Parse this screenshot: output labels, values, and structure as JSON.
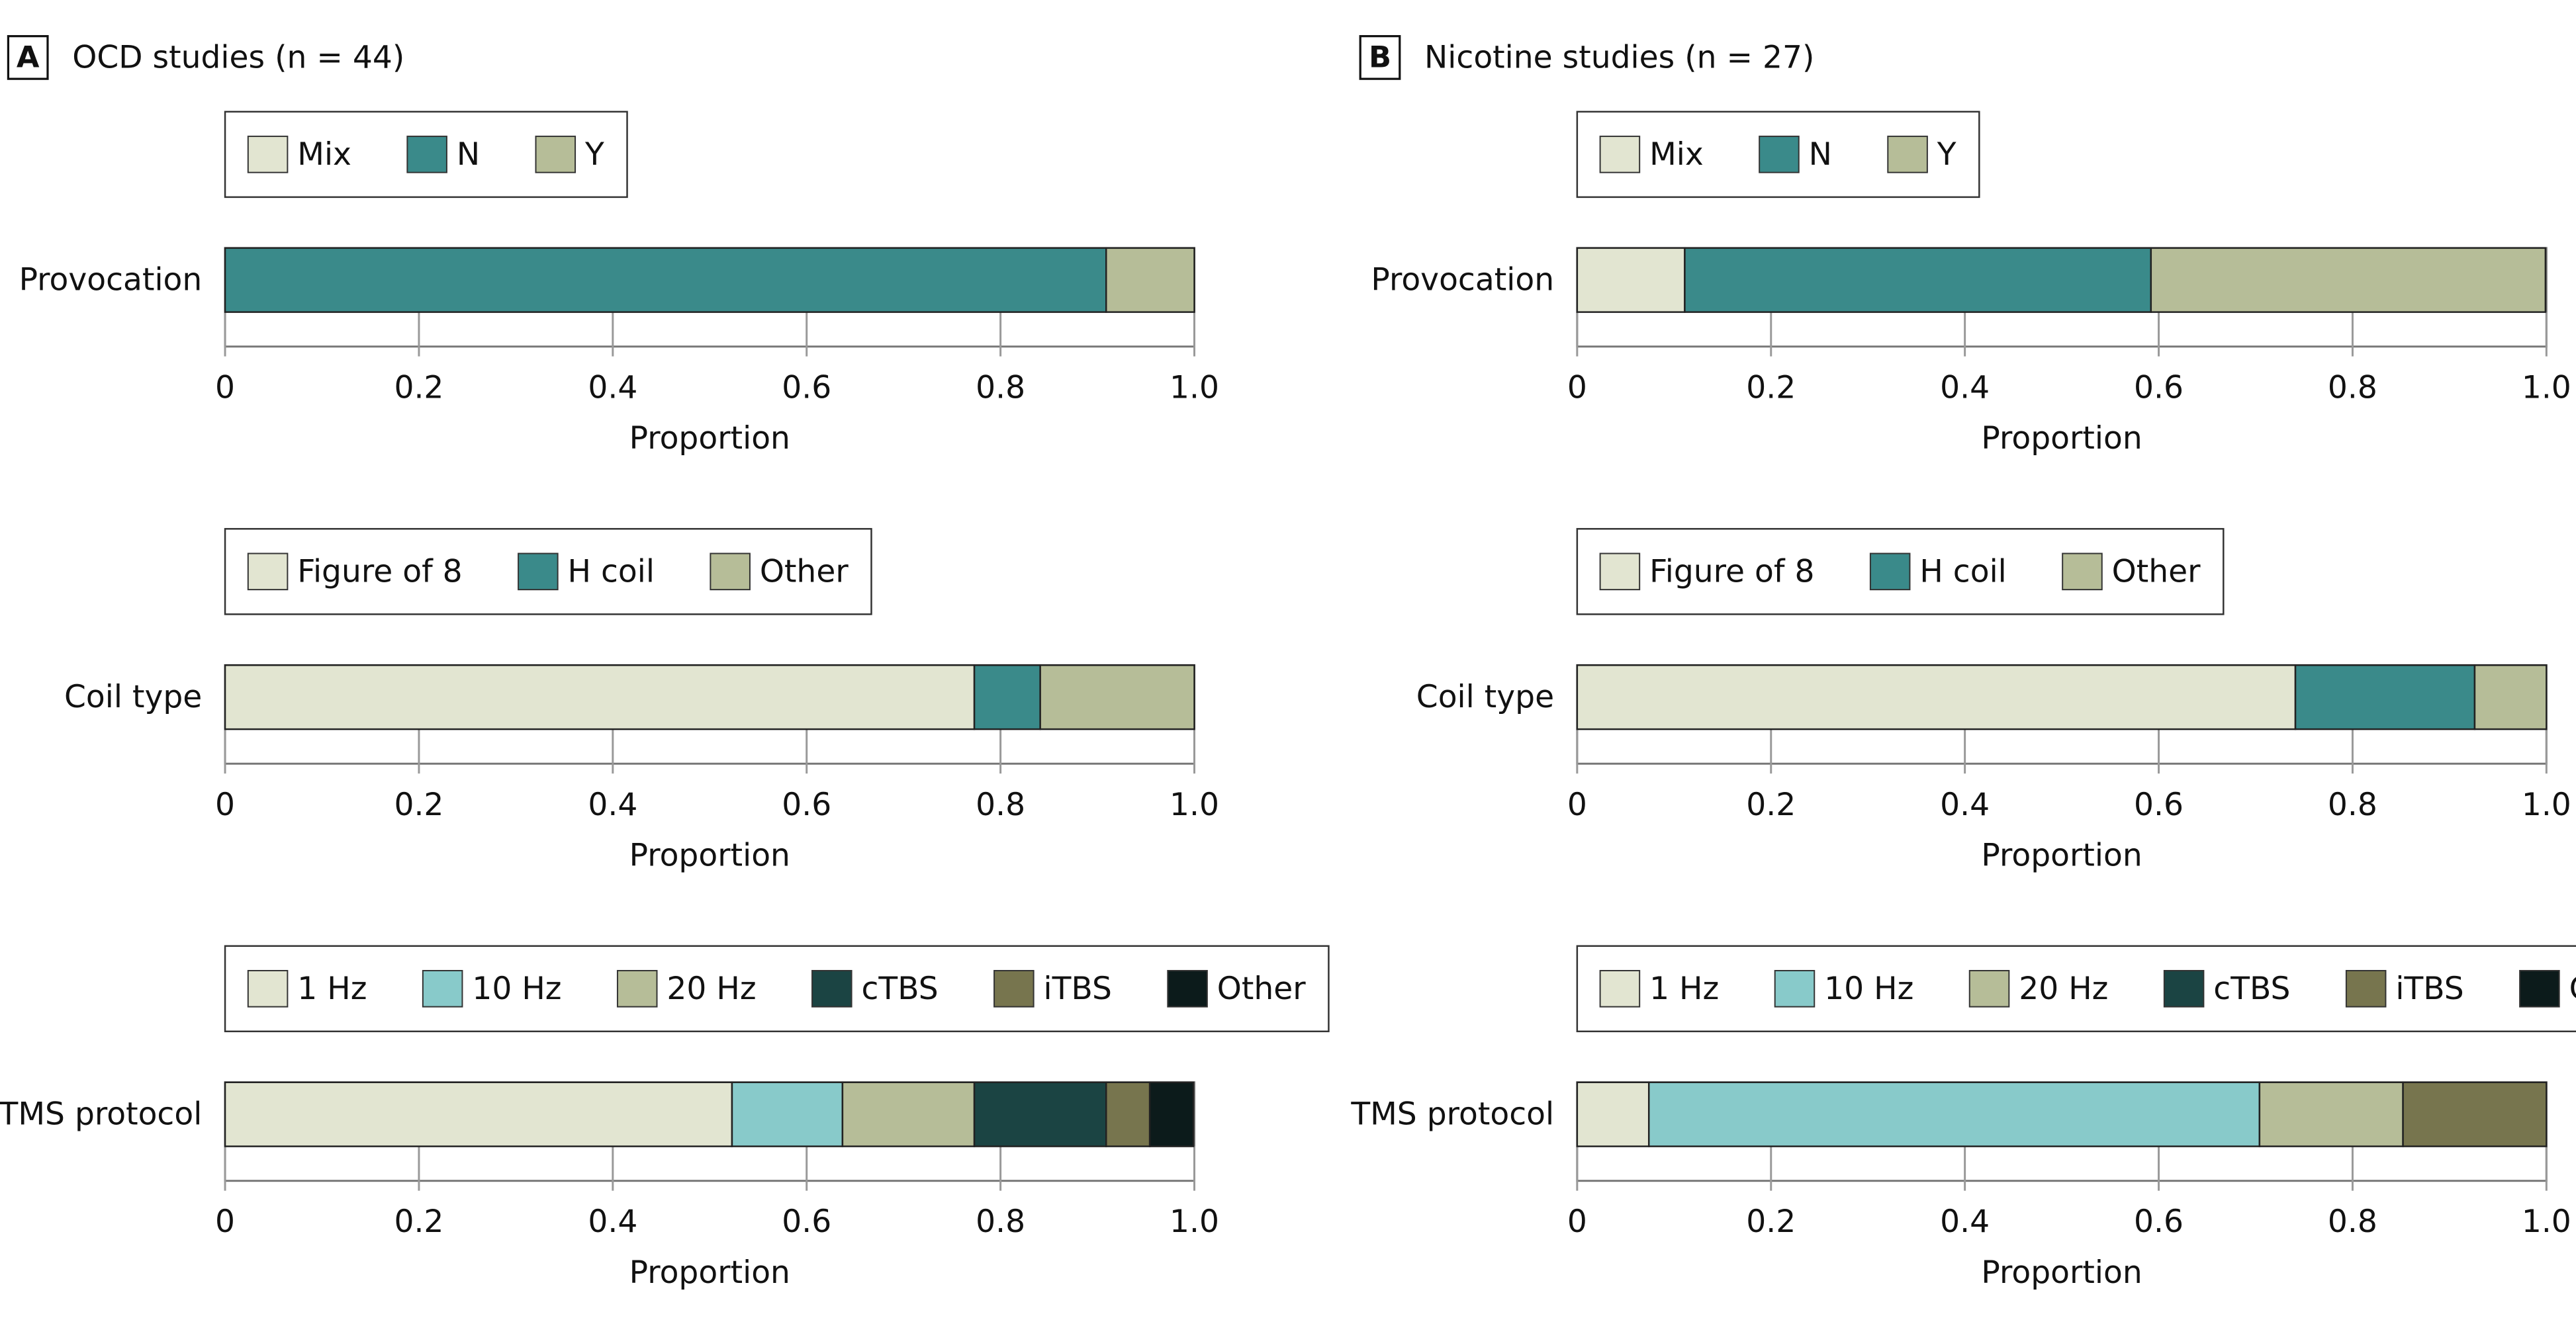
{
  "panels": [
    {
      "letter": "A",
      "title": "OCD studies (n = 44)"
    },
    {
      "letter": "B",
      "title": "Nicotine studies (n = 27)"
    }
  ],
  "chart_data": [
    {
      "type": "bar",
      "orientation": "horizontal",
      "stacked": true,
      "categories": [
        "Provocation"
      ],
      "series": [
        {
          "name": "Mix",
          "color": "#e2e5d1",
          "values": [
            0
          ]
        },
        {
          "name": "N",
          "color": "#3a8a8a",
          "values": [
            0.909
          ]
        },
        {
          "name": "Y",
          "color": "#b6bd98",
          "values": [
            0.091
          ]
        }
      ],
      "xlim": [
        0,
        1
      ],
      "xticks": [
        0,
        0.2,
        0.4,
        0.6,
        0.8,
        {
          "value": 1,
          "label": "1.0"
        }
      ],
      "xlabel": "Proportion",
      "grid": true
    },
    {
      "type": "bar",
      "orientation": "horizontal",
      "stacked": true,
      "categories": [
        "Coil type"
      ],
      "series": [
        {
          "name": "Figure of 8",
          "color": "#e2e5d1",
          "values": [
            0.773
          ]
        },
        {
          "name": "H coil",
          "color": "#3a8a8a",
          "values": [
            0.068
          ]
        },
        {
          "name": "Other",
          "color": "#b6bd98",
          "values": [
            0.159
          ]
        }
      ],
      "xlim": [
        0,
        1
      ],
      "xticks": [
        0,
        0.2,
        0.4,
        0.6,
        0.8,
        {
          "value": 1,
          "label": "1.0"
        }
      ],
      "xlabel": "Proportion",
      "grid": true
    },
    {
      "type": "bar",
      "orientation": "horizontal",
      "stacked": true,
      "categories": [
        "TMS protocol"
      ],
      "series": [
        {
          "name": "1 Hz",
          "color": "#e2e5d1",
          "values": [
            0.523
          ]
        },
        {
          "name": "10 Hz",
          "color": "#88caca",
          "values": [
            0.114
          ]
        },
        {
          "name": "20 Hz",
          "color": "#b6bd98",
          "values": [
            0.136
          ]
        },
        {
          "name": "cTBS",
          "color": "#1b4443",
          "values": [
            0.136
          ]
        },
        {
          "name": "iTBS",
          "color": "#77754e",
          "values": [
            0.045
          ]
        },
        {
          "name": "Other",
          "color": "#0c1b1b",
          "values": [
            0.045
          ]
        }
      ],
      "xlim": [
        0,
        1
      ],
      "xticks": [
        0,
        0.2,
        0.4,
        0.6,
        0.8,
        {
          "value": 1,
          "label": "1.0"
        }
      ],
      "xlabel": "Proportion",
      "grid": true
    },
    {
      "type": "bar",
      "orientation": "horizontal",
      "stacked": true,
      "categories": [
        "Provocation"
      ],
      "series": [
        {
          "name": "Mix",
          "color": "#e2e5d1",
          "values": [
            0.111
          ]
        },
        {
          "name": "N",
          "color": "#3a8a8a",
          "values": [
            0.481
          ]
        },
        {
          "name": "Y",
          "color": "#b6bd98",
          "values": [
            0.407
          ]
        }
      ],
      "xlim": [
        0,
        1
      ],
      "xticks": [
        0,
        0.2,
        0.4,
        0.6,
        0.8,
        {
          "value": 1,
          "label": "1.0"
        }
      ],
      "xlabel": "Proportion",
      "grid": true
    },
    {
      "type": "bar",
      "orientation": "horizontal",
      "stacked": true,
      "categories": [
        "Coil type"
      ],
      "series": [
        {
          "name": "Figure of 8",
          "color": "#e2e5d1",
          "values": [
            0.741
          ]
        },
        {
          "name": "H coil",
          "color": "#3a8a8a",
          "values": [
            0.185
          ]
        },
        {
          "name": "Other",
          "color": "#b6bd98",
          "values": [
            0.074
          ]
        }
      ],
      "xlim": [
        0,
        1
      ],
      "xticks": [
        0,
        0.2,
        0.4,
        0.6,
        0.8,
        {
          "value": 1,
          "label": "1.0"
        }
      ],
      "xlabel": "Proportion",
      "grid": true
    },
    {
      "type": "bar",
      "orientation": "horizontal",
      "stacked": true,
      "categories": [
        "TMS protocol"
      ],
      "series": [
        {
          "name": "1 Hz",
          "color": "#e2e5d1",
          "values": [
            0.074
          ]
        },
        {
          "name": "10 Hz",
          "color": "#88caca",
          "values": [
            0.63
          ]
        },
        {
          "name": "20 Hz",
          "color": "#b6bd98",
          "values": [
            0.148
          ]
        },
        {
          "name": "cTBS",
          "color": "#1b4443",
          "values": [
            0
          ]
        },
        {
          "name": "iTBS",
          "color": "#77754e",
          "values": [
            0.148
          ]
        },
        {
          "name": "Other",
          "color": "#0c1b1b",
          "values": [
            0
          ]
        }
      ],
      "xlim": [
        0,
        1
      ],
      "xticks": [
        0,
        0.2,
        0.4,
        0.6,
        0.8,
        {
          "value": 1,
          "label": "1.0"
        }
      ],
      "xlabel": "Proportion",
      "grid": true
    }
  ]
}
